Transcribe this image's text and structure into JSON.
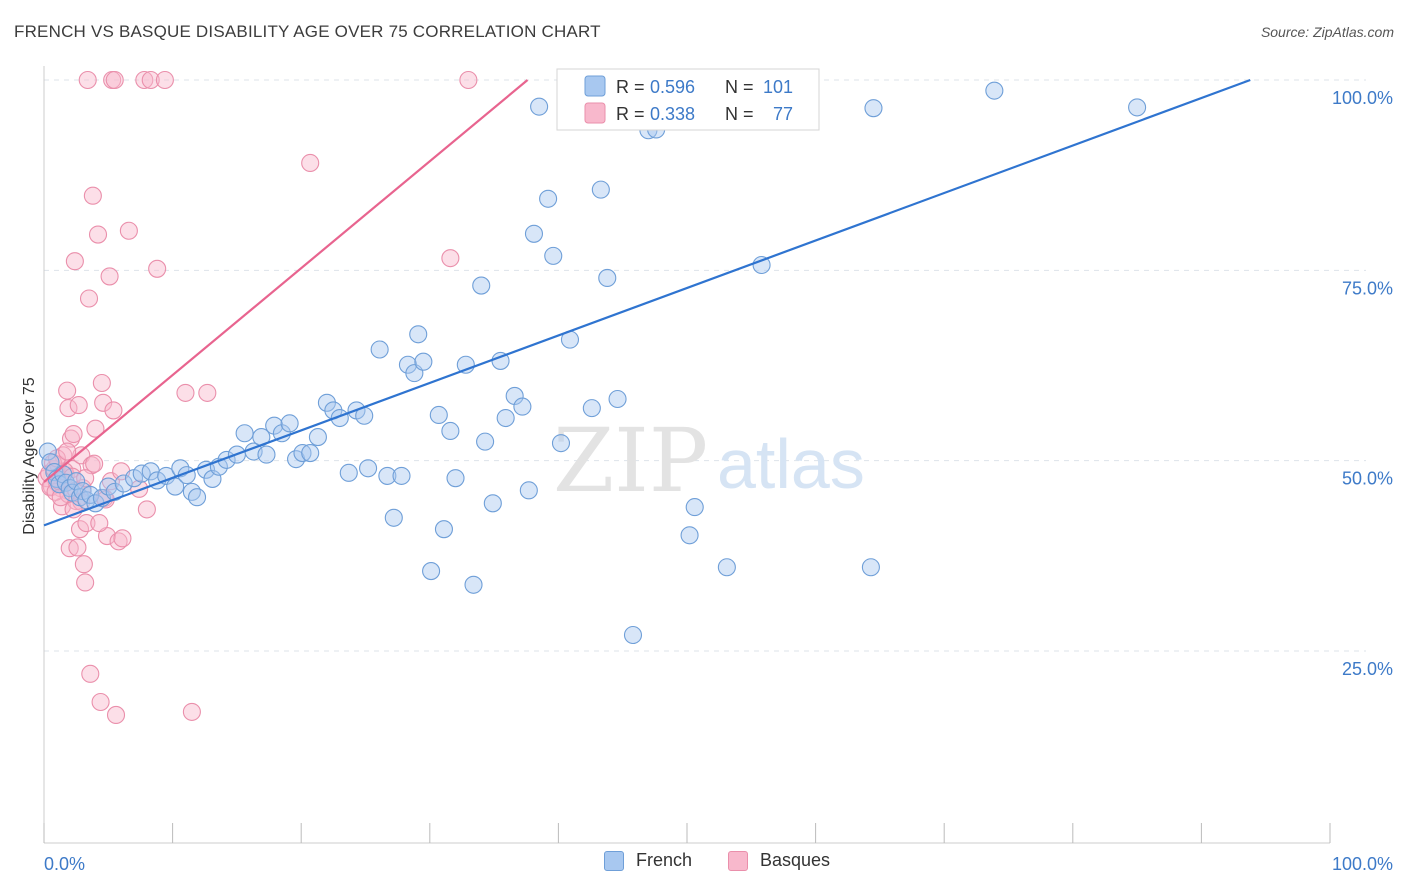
{
  "header": {
    "title": "FRENCH VS BASQUE DISABILITY AGE OVER 75 CORRELATION CHART",
    "source": "Source: ZipAtlas.com"
  },
  "watermark": {
    "zip": "ZIP",
    "atlas": "atlas"
  },
  "colors": {
    "french_fill": "#a8c8f0",
    "french_stroke": "#6f9fd8",
    "french_line": "#2f74d0",
    "basque_fill": "#f8b8cc",
    "basque_stroke": "#ea8fab",
    "basque_line": "#e8648f",
    "axis_label": "#3d7ac8",
    "grid": "#dde3ea"
  },
  "legend_stats": [
    {
      "series": "French",
      "r_label": "R =",
      "r_value": "0.596",
      "n_label": "N =",
      "n_value": "101"
    },
    {
      "series": "Basques",
      "r_label": "R =",
      "r_value": "0.338",
      "n_label": "N =",
      "n_value": "77"
    }
  ],
  "chart_data": {
    "type": "scatter",
    "title": "FRENCH VS BASQUE DISABILITY AGE OVER 75 CORRELATION CHART",
    "xlabel": "",
    "ylabel": "Disability Age Over 75",
    "xlim": [
      0,
      100
    ],
    "ylim": [
      0,
      100
    ],
    "x_tick_labels": [
      "0.0%",
      "100.0%"
    ],
    "y_tick_labels": [
      "100.0%",
      "75.0%",
      "50.0%",
      "25.0%"
    ],
    "y_ticks": [
      100,
      75,
      50,
      25
    ],
    "grid": true,
    "legend_position": "top-center",
    "series": [
      {
        "name": "French",
        "trend": [
          [
            0,
            41.5
          ],
          [
            93.8,
            100
          ]
        ],
        "points": [
          [
            0.3,
            51.2
          ],
          [
            0.5,
            49.8
          ],
          [
            0.8,
            48.5
          ],
          [
            1.0,
            47.6
          ],
          [
            1.2,
            46.9
          ],
          [
            1.5,
            48.2
          ],
          [
            1.7,
            47.1
          ],
          [
            2.0,
            46.4
          ],
          [
            2.2,
            45.8
          ],
          [
            2.5,
            47.3
          ],
          [
            2.8,
            45.2
          ],
          [
            3.0,
            46.0
          ],
          [
            3.3,
            44.8
          ],
          [
            3.6,
            45.5
          ],
          [
            4.0,
            44.4
          ],
          [
            4.5,
            45.1
          ],
          [
            5.0,
            46.6
          ],
          [
            5.5,
            45.9
          ],
          [
            6.2,
            47.0
          ],
          [
            7.0,
            47.7
          ],
          [
            7.6,
            48.3
          ],
          [
            8.3,
            48.6
          ],
          [
            8.8,
            47.4
          ],
          [
            9.5,
            48.0
          ],
          [
            10.2,
            46.6
          ],
          [
            10.6,
            49.0
          ],
          [
            11.1,
            48.1
          ],
          [
            11.5,
            45.9
          ],
          [
            11.9,
            45.2
          ],
          [
            12.6,
            48.8
          ],
          [
            13.1,
            47.6
          ],
          [
            13.6,
            49.2
          ],
          [
            14.2,
            50.1
          ],
          [
            15.0,
            50.8
          ],
          [
            15.6,
            53.6
          ],
          [
            16.3,
            51.2
          ],
          [
            16.9,
            53.1
          ],
          [
            17.3,
            50.8
          ],
          [
            17.9,
            54.6
          ],
          [
            18.5,
            53.6
          ],
          [
            19.1,
            54.9
          ],
          [
            19.6,
            50.2
          ],
          [
            20.1,
            51.0
          ],
          [
            20.7,
            51.0
          ],
          [
            21.3,
            53.1
          ],
          [
            22.0,
            57.6
          ],
          [
            22.5,
            56.6
          ],
          [
            23.0,
            55.6
          ],
          [
            23.7,
            48.4
          ],
          [
            24.3,
            56.6
          ],
          [
            24.9,
            55.9
          ],
          [
            25.2,
            49.0
          ],
          [
            26.1,
            64.6
          ],
          [
            26.7,
            48.0
          ],
          [
            27.2,
            42.5
          ],
          [
            27.8,
            48.0
          ],
          [
            28.3,
            62.6
          ],
          [
            28.8,
            61.5
          ],
          [
            29.1,
            66.6
          ],
          [
            29.5,
            63.0
          ],
          [
            30.1,
            35.5
          ],
          [
            30.7,
            56.0
          ],
          [
            31.1,
            41.0
          ],
          [
            31.6,
            53.9
          ],
          [
            32.0,
            47.7
          ],
          [
            32.8,
            62.6
          ],
          [
            33.4,
            33.7
          ],
          [
            34.0,
            73.0
          ],
          [
            34.3,
            52.5
          ],
          [
            34.9,
            44.4
          ],
          [
            35.5,
            63.1
          ],
          [
            35.9,
            55.6
          ],
          [
            36.6,
            58.5
          ],
          [
            37.2,
            57.1
          ],
          [
            37.7,
            46.1
          ],
          [
            38.1,
            79.8
          ],
          [
            38.5,
            96.5
          ],
          [
            39.2,
            84.4
          ],
          [
            39.6,
            76.9
          ],
          [
            40.2,
            52.3
          ],
          [
            40.9,
            65.9
          ],
          [
            41.8,
            96.2
          ],
          [
            42.6,
            56.9
          ],
          [
            43.3,
            85.6
          ],
          [
            43.8,
            74.0
          ],
          [
            44.6,
            58.1
          ],
          [
            45.4,
            96.1
          ],
          [
            45.8,
            27.1
          ],
          [
            47.0,
            93.4
          ],
          [
            47.6,
            93.5
          ],
          [
            48.4,
            95.7
          ],
          [
            50.2,
            40.2
          ],
          [
            50.6,
            43.9
          ],
          [
            52.5,
            96.6
          ],
          [
            53.1,
            36.0
          ],
          [
            54.5,
            96.4
          ],
          [
            55.8,
            75.7
          ],
          [
            64.3,
            36.0
          ],
          [
            64.5,
            96.3
          ],
          [
            73.9,
            98.6
          ],
          [
            85.0,
            96.4
          ]
        ]
      },
      {
        "name": "Basques",
        "trend": [
          [
            0,
            47.2
          ],
          [
            37.6,
            100
          ]
        ],
        "points": [
          [
            0.2,
            47.7
          ],
          [
            0.4,
            48.3
          ],
          [
            0.6,
            46.6
          ],
          [
            0.8,
            48.9
          ],
          [
            1.0,
            47.1
          ],
          [
            1.1,
            49.5
          ],
          [
            1.3,
            46.4
          ],
          [
            1.4,
            44.0
          ],
          [
            1.5,
            50.7
          ],
          [
            1.7,
            48.1
          ],
          [
            1.8,
            59.2
          ],
          [
            1.9,
            56.9
          ],
          [
            2.0,
            38.5
          ],
          [
            2.1,
            52.9
          ],
          [
            2.2,
            48.9
          ],
          [
            2.3,
            53.5
          ],
          [
            2.4,
            76.2
          ],
          [
            2.5,
            44.7
          ],
          [
            2.6,
            38.6
          ],
          [
            2.7,
            57.3
          ],
          [
            2.8,
            41.0
          ],
          [
            2.9,
            50.7
          ],
          [
            3.0,
            46.4
          ],
          [
            3.1,
            36.4
          ],
          [
            3.2,
            34.0
          ],
          [
            3.3,
            41.8
          ],
          [
            3.5,
            71.3
          ],
          [
            3.6,
            22.0
          ],
          [
            3.7,
            49.4
          ],
          [
            3.8,
            84.8
          ],
          [
            4.0,
            54.2
          ],
          [
            4.2,
            79.7
          ],
          [
            4.4,
            18.3
          ],
          [
            4.5,
            60.2
          ],
          [
            4.6,
            57.6
          ],
          [
            4.7,
            45.1
          ],
          [
            4.9,
            40.1
          ],
          [
            5.1,
            74.2
          ],
          [
            5.4,
            56.6
          ],
          [
            5.6,
            16.6
          ],
          [
            5.8,
            39.4
          ],
          [
            6.1,
            39.8
          ],
          [
            6.6,
            80.2
          ],
          [
            8.0,
            43.6
          ],
          [
            8.8,
            75.2
          ],
          [
            11.0,
            58.9
          ],
          [
            11.5,
            17.0
          ],
          [
            12.7,
            58.9
          ],
          [
            20.7,
            89.1
          ],
          [
            31.6,
            76.6
          ],
          [
            33.0,
            100.0
          ],
          [
            3.4,
            100.0
          ],
          [
            5.3,
            100.0
          ],
          [
            5.5,
            100.0
          ],
          [
            7.8,
            100.0
          ],
          [
            8.3,
            100.0
          ],
          [
            9.4,
            100.0
          ],
          [
            0.5,
            46.5
          ],
          [
            0.9,
            45.9
          ],
          [
            1.2,
            47.3
          ],
          [
            1.6,
            48.6
          ],
          [
            1.9,
            45.6
          ],
          [
            2.2,
            47.9
          ],
          [
            2.5,
            46.1
          ],
          [
            2.9,
            44.6
          ],
          [
            3.2,
            47.7
          ],
          [
            0.7,
            49.7
          ],
          [
            1.0,
            50.3
          ],
          [
            1.3,
            45.2
          ],
          [
            1.8,
            51.2
          ],
          [
            2.3,
            43.6
          ],
          [
            3.9,
            49.6
          ],
          [
            4.3,
            41.8
          ],
          [
            4.8,
            44.9
          ],
          [
            5.2,
            47.3
          ],
          [
            6.0,
            48.6
          ],
          [
            7.4,
            46.3
          ]
        ]
      }
    ]
  }
}
